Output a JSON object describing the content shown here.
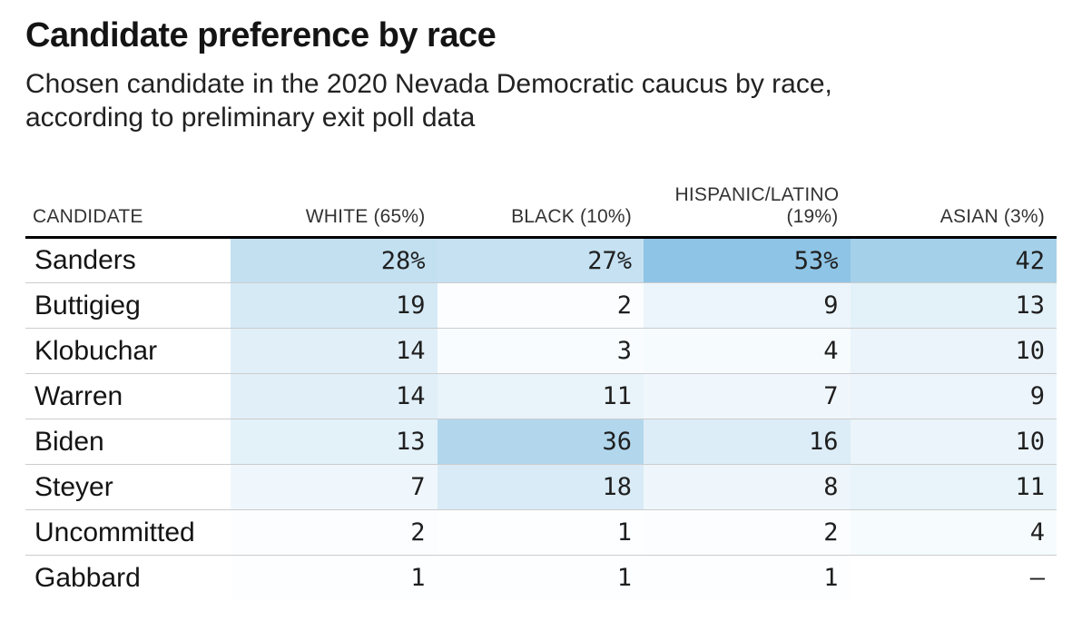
{
  "header": {
    "title": "Candidate preference by race",
    "subtitle": "Chosen candidate in the 2020 Nevada Democratic caucus by race, according to preliminary exit poll data"
  },
  "table": {
    "columns": [
      {
        "key": "candidate",
        "label": "CANDIDATE",
        "align": "left"
      },
      {
        "key": "white",
        "label": "WHITE (65%)",
        "align": "right"
      },
      {
        "key": "black",
        "label": "BLACK (10%)",
        "align": "right"
      },
      {
        "key": "hispanic",
        "label": "HISPANIC/LATINO (19%)",
        "align": "right"
      },
      {
        "key": "asian",
        "label": "ASIAN (3%)",
        "align": "right"
      }
    ],
    "rows": [
      {
        "candidate": "Sanders",
        "cells": [
          {
            "display": "28%",
            "value": 28
          },
          {
            "display": "27%",
            "value": 27
          },
          {
            "display": "53%",
            "value": 53
          },
          {
            "display": "42",
            "value": 42
          }
        ]
      },
      {
        "candidate": "Buttigieg",
        "cells": [
          {
            "display": "19",
            "value": 19
          },
          {
            "display": "2",
            "value": 2
          },
          {
            "display": "9",
            "value": 9
          },
          {
            "display": "13",
            "value": 13
          }
        ]
      },
      {
        "candidate": "Klobuchar",
        "cells": [
          {
            "display": "14",
            "value": 14
          },
          {
            "display": "3",
            "value": 3
          },
          {
            "display": "4",
            "value": 4
          },
          {
            "display": "10",
            "value": 10
          }
        ]
      },
      {
        "candidate": "Warren",
        "cells": [
          {
            "display": "14",
            "value": 14
          },
          {
            "display": "11",
            "value": 11
          },
          {
            "display": "7",
            "value": 7
          },
          {
            "display": "9",
            "value": 9
          }
        ]
      },
      {
        "candidate": "Biden",
        "cells": [
          {
            "display": "13",
            "value": 13
          },
          {
            "display": "36",
            "value": 36
          },
          {
            "display": "16",
            "value": 16
          },
          {
            "display": "10",
            "value": 10
          }
        ]
      },
      {
        "candidate": "Steyer",
        "cells": [
          {
            "display": "7",
            "value": 7
          },
          {
            "display": "18",
            "value": 18
          },
          {
            "display": "8",
            "value": 8
          },
          {
            "display": "11",
            "value": 11
          }
        ]
      },
      {
        "candidate": "Uncommitted",
        "cells": [
          {
            "display": "2",
            "value": 2
          },
          {
            "display": "1",
            "value": 1
          },
          {
            "display": "2",
            "value": 2
          },
          {
            "display": "4",
            "value": 4
          }
        ]
      },
      {
        "candidate": "Gabbard",
        "cells": [
          {
            "display": "1",
            "value": 1
          },
          {
            "display": "1",
            "value": 1
          },
          {
            "display": "1",
            "value": 1
          },
          {
            "display": "–",
            "value": null
          }
        ]
      }
    ],
    "heatmap": {
      "min_color": "#ffffff",
      "max_color": "#8ec4e5",
      "max_value": 53
    },
    "style_colors": {
      "header_rule": "#000000",
      "row_divider": "#cccccc"
    }
  },
  "chart_data": {
    "type": "heatmap",
    "title": "Candidate preference by race",
    "subtitle": "Chosen candidate in the 2020 Nevada Democratic caucus by race, according to preliminary exit poll data",
    "rows": [
      "Sanders",
      "Buttigieg",
      "Klobuchar",
      "Warren",
      "Biden",
      "Steyer",
      "Uncommitted",
      "Gabbard"
    ],
    "columns": [
      "WHITE (65%)",
      "BLACK (10%)",
      "HISPANIC/LATINO (19%)",
      "ASIAN (3%)"
    ],
    "values": [
      [
        28,
        27,
        53,
        42
      ],
      [
        19,
        2,
        9,
        13
      ],
      [
        14,
        3,
        4,
        10
      ],
      [
        14,
        11,
        7,
        9
      ],
      [
        13,
        36,
        16,
        10
      ],
      [
        7,
        18,
        8,
        11
      ],
      [
        2,
        1,
        2,
        4
      ],
      [
        1,
        1,
        1,
        null
      ]
    ],
    "unit": "percent",
    "missing_value_marker": "–",
    "color_scale": {
      "min": "#ffffff",
      "max": "#8ec4e5",
      "domain": [
        0,
        53
      ]
    },
    "layout": {
      "legend": "none",
      "grid": "row-dividers",
      "value_alignment": "right"
    }
  }
}
